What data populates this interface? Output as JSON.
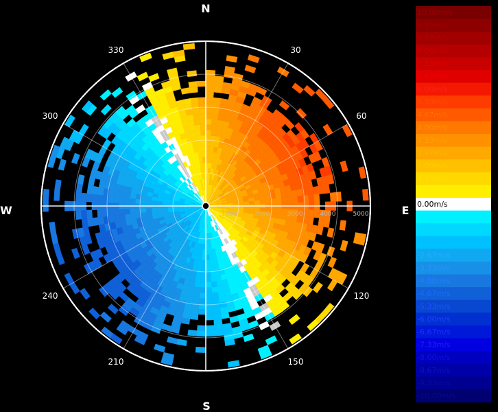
{
  "chart_data": {
    "type": "polar-ppi",
    "compass": [
      "N",
      "E",
      "S",
      "W"
    ],
    "azimuth_ticks": [
      30,
      60,
      120,
      150,
      210,
      240,
      300,
      330
    ],
    "range_ticks": [
      1000,
      2000,
      3000,
      4000,
      5000
    ],
    "range_max": 5000,
    "grid": true,
    "velocity_pattern": {
      "zero_line_azimuth": 150,
      "positive_sector": [
        330,
        150
      ],
      "negative_sector": [
        150,
        330
      ],
      "max_positive_mps": 5.0,
      "max_negative_mps": -4.7
    },
    "colorbar": {
      "placement": "right",
      "labels": [
        "10.00m/s",
        "9.33m/s",
        "8.67m/s",
        "8.00m/s",
        "7.33m/s",
        "6.67m/s",
        "6.00m/s",
        "5.33m/s",
        "4.67m/s",
        "4.00m/s",
        "3.33m/s",
        "2.67m/s",
        "2.00m/s",
        "1.33m/s",
        "0.67m/s",
        "0.00m/s",
        "-0.67m/s",
        "-1.33m/s",
        "-2.00m/s",
        "-2.67m/s",
        "-3.33m/s",
        "-4.00m/s",
        "-4.67m/s",
        "-5.33m/s",
        "-6.00m/s",
        "-6.67m/s",
        "-7.33m/s",
        "-8.00m/s",
        "-8.67m/s",
        "-9.33m/s",
        "-10.00m/s"
      ],
      "colors": [
        "#7a0000",
        "#8c0000",
        "#a00000",
        "#b40000",
        "#c80000",
        "#e00000",
        "#f41800",
        "#ff3c00",
        "#ff5a00",
        "#ff7800",
        "#ff9000",
        "#ffa800",
        "#ffc000",
        "#ffd800",
        "#ffee00",
        "#ffffff",
        "#00f0ff",
        "#00d8ff",
        "#00c0ff",
        "#10a8f0",
        "#1890e8",
        "#1878e0",
        "#1060d8",
        "#0848d0",
        "#0030d0",
        "#0018d8",
        "#0000e0",
        "#0000c0",
        "#0000a8",
        "#000090",
        "#000070"
      ],
      "label_colors": [
        "#a00000",
        "#a00000",
        "#b40000",
        "#c80000",
        "#e00000",
        "#f00000",
        "#ff2020",
        "#ff4a00",
        "#ff7000",
        "#ff9000",
        "#ffa000",
        "#ffb400",
        "#ffcc00",
        "#ffe000",
        "#ffee00",
        "#ffffff",
        "#00f0ff",
        "#00d8ff",
        "#00c0ff",
        "#20b0ff",
        "#2098ff",
        "#2080ff",
        "#2068ff",
        "#2050ff",
        "#2040ff",
        "#2030ff",
        "#2020ff",
        "#1010e0",
        "#1010c0",
        "#0808a8",
        "#080890"
      ]
    }
  }
}
